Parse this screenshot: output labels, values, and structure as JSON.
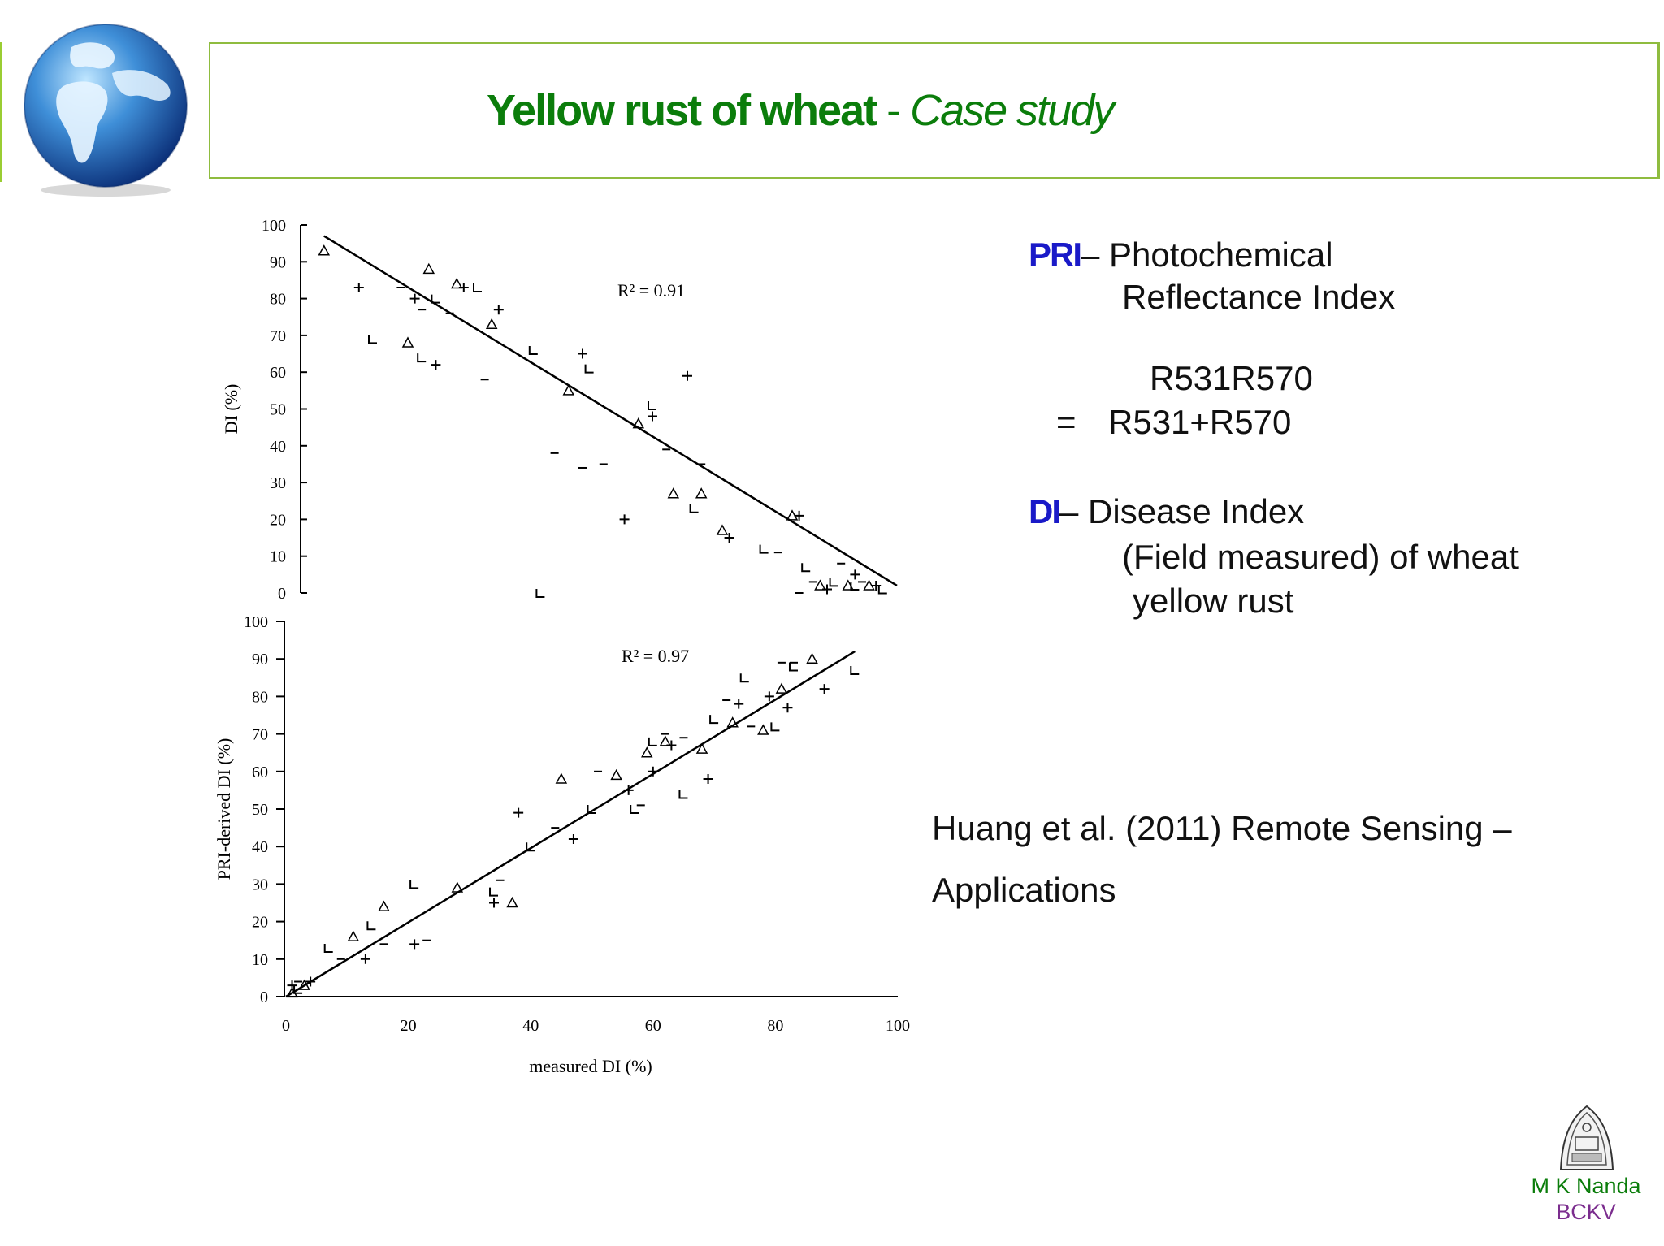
{
  "header": {
    "title_bold": "Yellow rust of wheat",
    "title_sep": " - ",
    "title_italic": "Case study"
  },
  "legend": {
    "pri_abbr": "PRI",
    "pri_dash": "– ",
    "pri_line1": "Photochemical",
    "pri_line2": "Reflectance Index",
    "formula_num": "R531R570",
    "formula_eq": "=",
    "formula_den": "R531+R570",
    "di_abbr": "DI",
    "di_dash": "– ",
    "di_line1": "Disease Index",
    "di_line2": "(Field measured) of wheat",
    "di_line3": "yellow rust"
  },
  "citation": {
    "line1": "Huang et al. (2011) Remote Sensing –",
    "line2": "Applications"
  },
  "signature": {
    "name": "M K Nanda",
    "org": "BCKV"
  },
  "chart_data": [
    {
      "type": "scatter",
      "title": "",
      "ylabel": "DI (%)",
      "xlabel": "",
      "xlim": [
        0,
        100
      ],
      "ylim": [
        0,
        100
      ],
      "yticks": [
        "0",
        "10",
        "20",
        "30",
        "40",
        "50",
        "60",
        "70",
        "80",
        "90",
        "100"
      ],
      "annotation": "R² = 0.91",
      "fit_line": {
        "x": [
          8,
          90
        ],
        "y": [
          97,
          2
        ]
      },
      "grid": false,
      "points": [
        [
          8,
          93
        ],
        [
          13,
          83
        ],
        [
          15,
          69
        ],
        [
          19,
          83
        ],
        [
          20,
          68
        ],
        [
          21,
          80
        ],
        [
          22,
          64
        ],
        [
          22,
          77
        ],
        [
          23,
          88
        ],
        [
          24,
          62
        ],
        [
          24,
          80
        ],
        [
          26,
          76
        ],
        [
          27,
          84
        ],
        [
          28,
          83
        ],
        [
          30,
          83
        ],
        [
          31,
          58
        ],
        [
          32,
          73
        ],
        [
          33,
          77
        ],
        [
          38,
          66
        ],
        [
          41,
          38
        ],
        [
          43,
          55
        ],
        [
          45,
          65
        ],
        [
          46,
          61
        ],
        [
          48,
          35
        ],
        [
          53,
          46
        ],
        [
          55,
          48
        ],
        [
          55,
          51
        ],
        [
          57,
          39
        ],
        [
          58,
          27
        ],
        [
          60,
          59
        ],
        [
          61,
          23
        ],
        [
          62,
          35
        ],
        [
          65,
          17
        ],
        [
          66,
          15
        ],
        [
          71,
          12
        ],
        [
          73,
          11
        ],
        [
          75,
          21
        ],
        [
          76,
          21
        ],
        [
          77,
          7
        ],
        [
          78,
          3
        ],
        [
          79,
          2
        ],
        [
          80,
          1
        ],
        [
          81,
          3
        ],
        [
          82,
          8
        ],
        [
          83,
          2
        ],
        [
          84,
          5
        ],
        [
          84,
          2
        ],
        [
          85,
          3
        ],
        [
          86,
          2
        ],
        [
          87,
          2
        ],
        [
          88,
          1
        ],
        [
          45,
          34
        ],
        [
          62,
          27
        ],
        [
          51,
          20
        ],
        [
          39,
          0
        ],
        [
          76,
          0
        ]
      ]
    },
    {
      "type": "scatter",
      "title": "",
      "ylabel": "PRI-derived DI (%)",
      "xlabel": "measured DI (%)",
      "xlim": [
        0,
        100
      ],
      "ylim": [
        0,
        100
      ],
      "xticks": [
        "0",
        "20",
        "40",
        "60",
        "80",
        "100"
      ],
      "yticks": [
        "0",
        "10",
        "20",
        "30",
        "40",
        "50",
        "60",
        "70",
        "80",
        "90",
        "100"
      ],
      "annotation": "R² = 0.97",
      "fit_line": {
        "x": [
          0,
          93
        ],
        "y": [
          0,
          92
        ]
      },
      "grid": false,
      "points": [
        [
          1,
          1
        ],
        [
          1,
          3
        ],
        [
          2,
          2
        ],
        [
          2,
          4
        ],
        [
          3,
          3
        ],
        [
          4,
          4
        ],
        [
          7,
          13
        ],
        [
          9,
          10
        ],
        [
          11,
          16
        ],
        [
          13,
          10
        ],
        [
          14,
          19
        ],
        [
          16,
          14
        ],
        [
          16,
          24
        ],
        [
          21,
          14
        ],
        [
          21,
          30
        ],
        [
          23,
          15
        ],
        [
          28,
          29
        ],
        [
          34,
          25
        ],
        [
          34,
          28
        ],
        [
          35,
          31
        ],
        [
          37,
          25
        ],
        [
          38,
          49
        ],
        [
          40,
          40
        ],
        [
          44,
          45
        ],
        [
          45,
          58
        ],
        [
          47,
          42
        ],
        [
          50,
          50
        ],
        [
          51,
          60
        ],
        [
          54,
          59
        ],
        [
          56,
          55
        ],
        [
          57,
          50
        ],
        [
          58,
          51
        ],
        [
          59,
          65
        ],
        [
          60,
          60
        ],
        [
          60,
          68
        ],
        [
          62,
          70
        ],
        [
          62,
          68
        ],
        [
          63,
          67
        ],
        [
          65,
          54
        ],
        [
          65,
          69
        ],
        [
          68,
          66
        ],
        [
          69,
          58
        ],
        [
          70,
          74
        ],
        [
          72,
          79
        ],
        [
          73,
          73
        ],
        [
          74,
          78
        ],
        [
          75,
          85
        ],
        [
          76,
          72
        ],
        [
          78,
          71
        ],
        [
          79,
          80
        ],
        [
          80,
          72
        ],
        [
          81,
          89
        ],
        [
          81,
          82
        ],
        [
          82,
          77
        ],
        [
          83,
          88
        ],
        [
          83,
          89
        ],
        [
          86,
          90
        ],
        [
          88,
          82
        ],
        [
          93,
          87
        ]
      ]
    }
  ]
}
